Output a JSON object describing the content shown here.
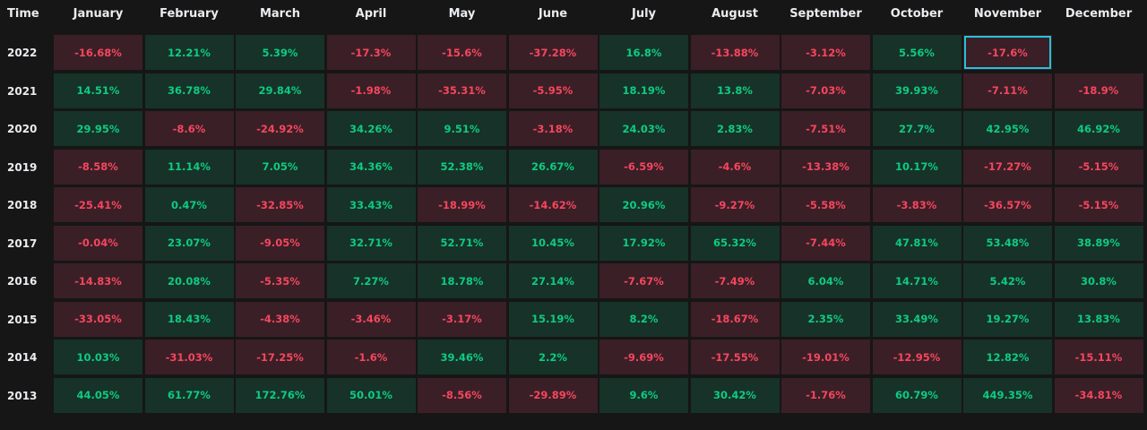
{
  "chart_data": {
    "type": "heatmap",
    "corner_label": "Time",
    "columns": [
      "January",
      "February",
      "March",
      "April",
      "May",
      "June",
      "July",
      "August",
      "September",
      "October",
      "November",
      "December"
    ],
    "rows": [
      {
        "year": "2022",
        "values": [
          "-16.68%",
          "12.21%",
          "5.39%",
          "-17.3%",
          "-15.6%",
          "-37.28%",
          "16.8%",
          "-13.88%",
          "-3.12%",
          "5.56%",
          "-17.6%",
          ""
        ]
      },
      {
        "year": "2021",
        "values": [
          "14.51%",
          "36.78%",
          "29.84%",
          "-1.98%",
          "-35.31%",
          "-5.95%",
          "18.19%",
          "13.8%",
          "-7.03%",
          "39.93%",
          "-7.11%",
          "-18.9%"
        ]
      },
      {
        "year": "2020",
        "values": [
          "29.95%",
          "-8.6%",
          "-24.92%",
          "34.26%",
          "9.51%",
          "-3.18%",
          "24.03%",
          "2.83%",
          "-7.51%",
          "27.7%",
          "42.95%",
          "46.92%"
        ]
      },
      {
        "year": "2019",
        "values": [
          "-8.58%",
          "11.14%",
          "7.05%",
          "34.36%",
          "52.38%",
          "26.67%",
          "-6.59%",
          "-4.6%",
          "-13.38%",
          "10.17%",
          "-17.27%",
          "-5.15%"
        ]
      },
      {
        "year": "2018",
        "values": [
          "-25.41%",
          "0.47%",
          "-32.85%",
          "33.43%",
          "-18.99%",
          "-14.62%",
          "20.96%",
          "-9.27%",
          "-5.58%",
          "-3.83%",
          "-36.57%",
          "-5.15%"
        ]
      },
      {
        "year": "2017",
        "values": [
          "-0.04%",
          "23.07%",
          "-9.05%",
          "32.71%",
          "52.71%",
          "10.45%",
          "17.92%",
          "65.32%",
          "-7.44%",
          "47.81%",
          "53.48%",
          "38.89%"
        ]
      },
      {
        "year": "2016",
        "values": [
          "-14.83%",
          "20.08%",
          "-5.35%",
          "7.27%",
          "18.78%",
          "27.14%",
          "-7.67%",
          "-7.49%",
          "6.04%",
          "14.71%",
          "5.42%",
          "30.8%"
        ]
      },
      {
        "year": "2015",
        "values": [
          "-33.05%",
          "18.43%",
          "-4.38%",
          "-3.46%",
          "-3.17%",
          "15.19%",
          "8.2%",
          "-18.67%",
          "2.35%",
          "33.49%",
          "19.27%",
          "13.83%"
        ]
      },
      {
        "year": "2014",
        "values": [
          "10.03%",
          "-31.03%",
          "-17.25%",
          "-1.6%",
          "39.46%",
          "2.2%",
          "-9.69%",
          "-17.55%",
          "-19.01%",
          "-12.95%",
          "12.82%",
          "-15.11%"
        ]
      },
      {
        "year": "2013",
        "values": [
          "44.05%",
          "61.77%",
          "172.76%",
          "50.01%",
          "-8.56%",
          "-29.89%",
          "9.6%",
          "30.42%",
          "-1.76%",
          "60.79%",
          "449.35%",
          "-34.81%"
        ]
      }
    ],
    "highlighted_cell": {
      "year": "2022",
      "month": "November"
    },
    "colors": {
      "background": "#161616",
      "positive_bg": "#173229",
      "positive_text": "#0ecb81",
      "negative_bg": "#3a1f27",
      "negative_text": "#f6465d",
      "header_text": "#eaecef",
      "highlight": "#24c3d6"
    }
  }
}
